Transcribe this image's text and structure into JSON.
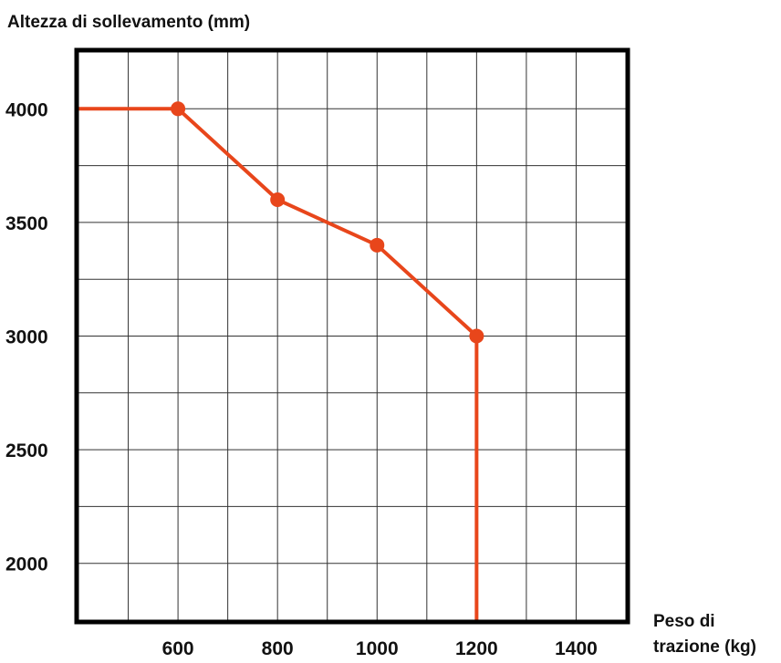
{
  "chart_data": {
    "type": "line",
    "ylabel": "Altezza di sollevamento (mm)",
    "xlabel_lines": [
      "Peso di",
      "trazione (kg)"
    ],
    "xlim": [
      400,
      1500
    ],
    "ylim": [
      1750,
      4250
    ],
    "x_ticks": [
      600,
      800,
      1000,
      1200,
      1400
    ],
    "y_ticks": [
      2000,
      2500,
      3000,
      3500,
      4000
    ],
    "x_grid_step": 100,
    "y_grid_step": 250,
    "grid": true,
    "series": [
      {
        "color": "#e8461b",
        "points": [
          {
            "x": 400,
            "y": 4000,
            "marker": false
          },
          {
            "x": 600,
            "y": 4000,
            "marker": true
          },
          {
            "x": 800,
            "y": 3600,
            "marker": true
          },
          {
            "x": 1000,
            "y": 3400,
            "marker": true
          },
          {
            "x": 1200,
            "y": 3000,
            "marker": true
          },
          {
            "x": 1200,
            "y": 1750,
            "marker": false
          }
        ]
      }
    ]
  }
}
